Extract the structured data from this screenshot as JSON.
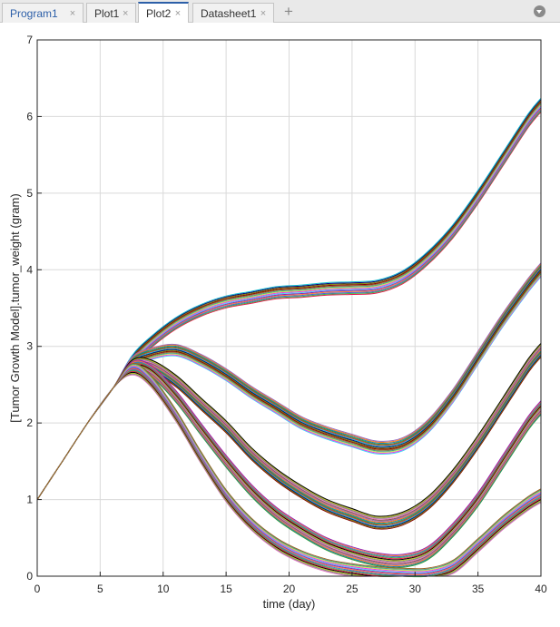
{
  "tabs": [
    {
      "label": "Program1",
      "close": "×"
    },
    {
      "label": "Plot1",
      "close": "×"
    },
    {
      "label": "Plot2",
      "close": "×"
    },
    {
      "label": "Datasheet1",
      "close": "×"
    }
  ],
  "add_tab_label": "+",
  "active_tab": "Plot2",
  "colors": {
    "tab_active_accent": "#2c5fa8",
    "plot_bg": "#ffffff",
    "grid": "#d9d9d9"
  },
  "chart_data": {
    "type": "line",
    "xlabel": "time (day)",
    "ylabel": "[Tumor Growth Model].tumor_weight (gram)",
    "xlim": [
      0,
      40
    ],
    "ylim": [
      0,
      7
    ],
    "xticks": [
      "0",
      "5",
      "10",
      "15",
      "20",
      "25",
      "30",
      "35",
      "40"
    ],
    "yticks": [
      "0",
      "1",
      "2",
      "3",
      "4",
      "5",
      "6",
      "7"
    ],
    "grid": true,
    "series_note_groups": [
      {
        "name": "",
        "x": [
          0,
          2,
          4,
          6,
          7.5,
          9,
          11,
          13,
          15,
          17,
          19,
          21,
          23,
          25,
          27,
          29,
          31,
          33,
          35,
          37,
          39,
          40
        ],
        "y": [
          1.0,
          1.5,
          2.0,
          2.45,
          2.8,
          3.05,
          3.3,
          3.47,
          3.58,
          3.64,
          3.7,
          3.72,
          3.75,
          3.76,
          3.78,
          3.9,
          4.15,
          4.5,
          4.95,
          5.45,
          5.95,
          6.15
        ]
      },
      {
        "name": "",
        "x": [
          0,
          2,
          4,
          6,
          7.5,
          9,
          11,
          13,
          15,
          17,
          19,
          21,
          23,
          25,
          27,
          29,
          31,
          33,
          35,
          37,
          39,
          40
        ],
        "y": [
          1.0,
          1.5,
          2.0,
          2.45,
          2.78,
          2.9,
          2.95,
          2.82,
          2.63,
          2.4,
          2.2,
          2.0,
          1.87,
          1.77,
          1.68,
          1.72,
          1.95,
          2.35,
          2.85,
          3.35,
          3.8,
          4.0
        ]
      },
      {
        "name": "",
        "x": [
          0,
          2,
          4,
          6,
          7.5,
          9,
          11,
          13,
          15,
          17,
          19,
          21,
          23,
          25,
          27,
          29,
          31,
          33,
          35,
          37,
          39,
          40
        ],
        "y": [
          1.0,
          1.5,
          2.0,
          2.45,
          2.74,
          2.75,
          2.55,
          2.25,
          1.95,
          1.6,
          1.32,
          1.1,
          0.92,
          0.8,
          0.7,
          0.75,
          0.95,
          1.3,
          1.75,
          2.25,
          2.75,
          2.95
        ]
      },
      {
        "name": "",
        "x": [
          0,
          2,
          4,
          6,
          7.5,
          9,
          11,
          13,
          15,
          17,
          19,
          21,
          23,
          25,
          27,
          29,
          31,
          33,
          35,
          37,
          39,
          40
        ],
        "y": [
          1.0,
          1.5,
          2.0,
          2.45,
          2.72,
          2.68,
          2.35,
          1.92,
          1.5,
          1.12,
          0.82,
          0.6,
          0.42,
          0.3,
          0.22,
          0.2,
          0.3,
          0.6,
          1.0,
          1.5,
          2.0,
          2.2
        ]
      },
      {
        "name": "",
        "x": [
          0,
          2,
          4,
          6,
          7.5,
          9,
          11,
          13,
          15,
          17,
          19,
          21,
          23,
          25,
          27,
          29,
          31,
          33,
          35,
          37,
          39,
          40
        ],
        "y": [
          1.0,
          1.5,
          2.0,
          2.45,
          2.7,
          2.55,
          2.1,
          1.55,
          1.05,
          0.68,
          0.42,
          0.25,
          0.14,
          0.08,
          0.04,
          0.02,
          0.02,
          0.12,
          0.4,
          0.7,
          0.95,
          1.05
        ]
      }
    ]
  }
}
